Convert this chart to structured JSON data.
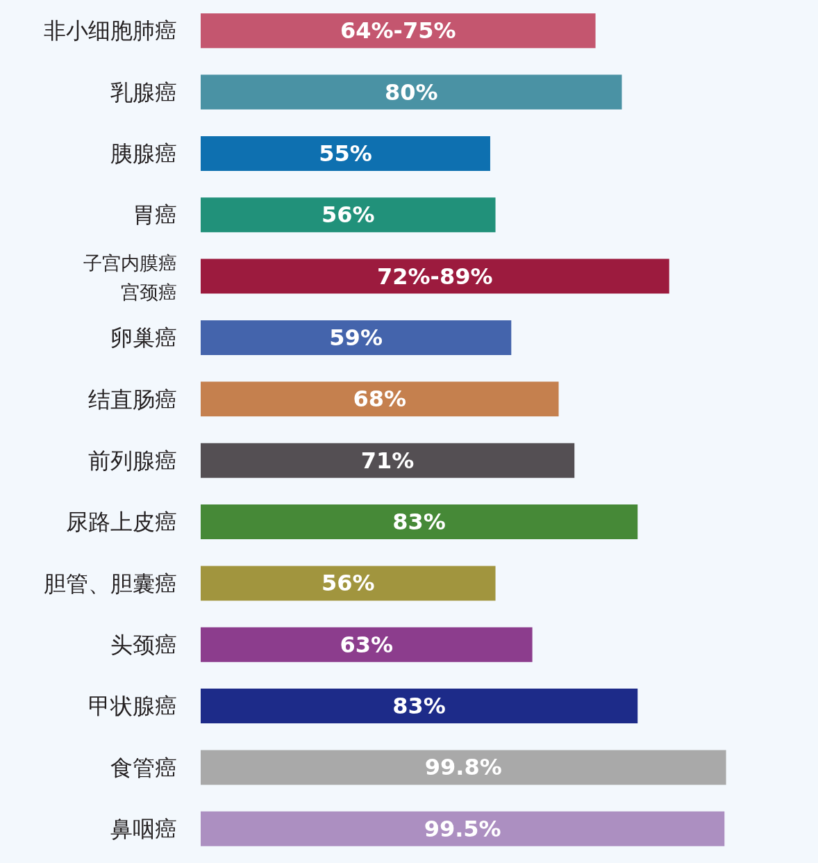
{
  "chart_data": {
    "type": "bar",
    "orientation": "horizontal",
    "tick_labels": "y",
    "categories": [
      "非小细胞肺癌",
      "乳腺癌",
      "胰腺癌",
      "胃癌",
      "子宫内膜癌宫颈癌",
      "卵巢癌",
      "结直肠癌",
      "前列腺癌",
      "尿路上皮癌",
      "胆管、胆囊癌",
      "头颈癌",
      "甲状腺癌",
      "食管癌",
      "鼻咽癌"
    ],
    "values": [
      75,
      80,
      55,
      56,
      89,
      59,
      68,
      71,
      83,
      56,
      63,
      83,
      99.8,
      99.5
    ],
    "value_labels": [
      null,
      "80%",
      "55%",
      "56%",
      null,
      "59%",
      "68%",
      "71%",
      "83%",
      "56%",
      "63%",
      "83%",
      "99.8%",
      "99.5%"
    ],
    "annotations": [
      "64%-75%",
      "72%-89%"
    ],
    "colors": [
      "#c4566f",
      "#4a92a4",
      "#0e70b0",
      "#21917a",
      "#9c1b3e",
      "#4464ac",
      "#c5804e",
      "#544f53",
      "#468937",
      "#a1953e",
      "#8c3d8d",
      "#1d2b89",
      "#a9a9a9",
      "#ac8fc1"
    ]
  }
}
